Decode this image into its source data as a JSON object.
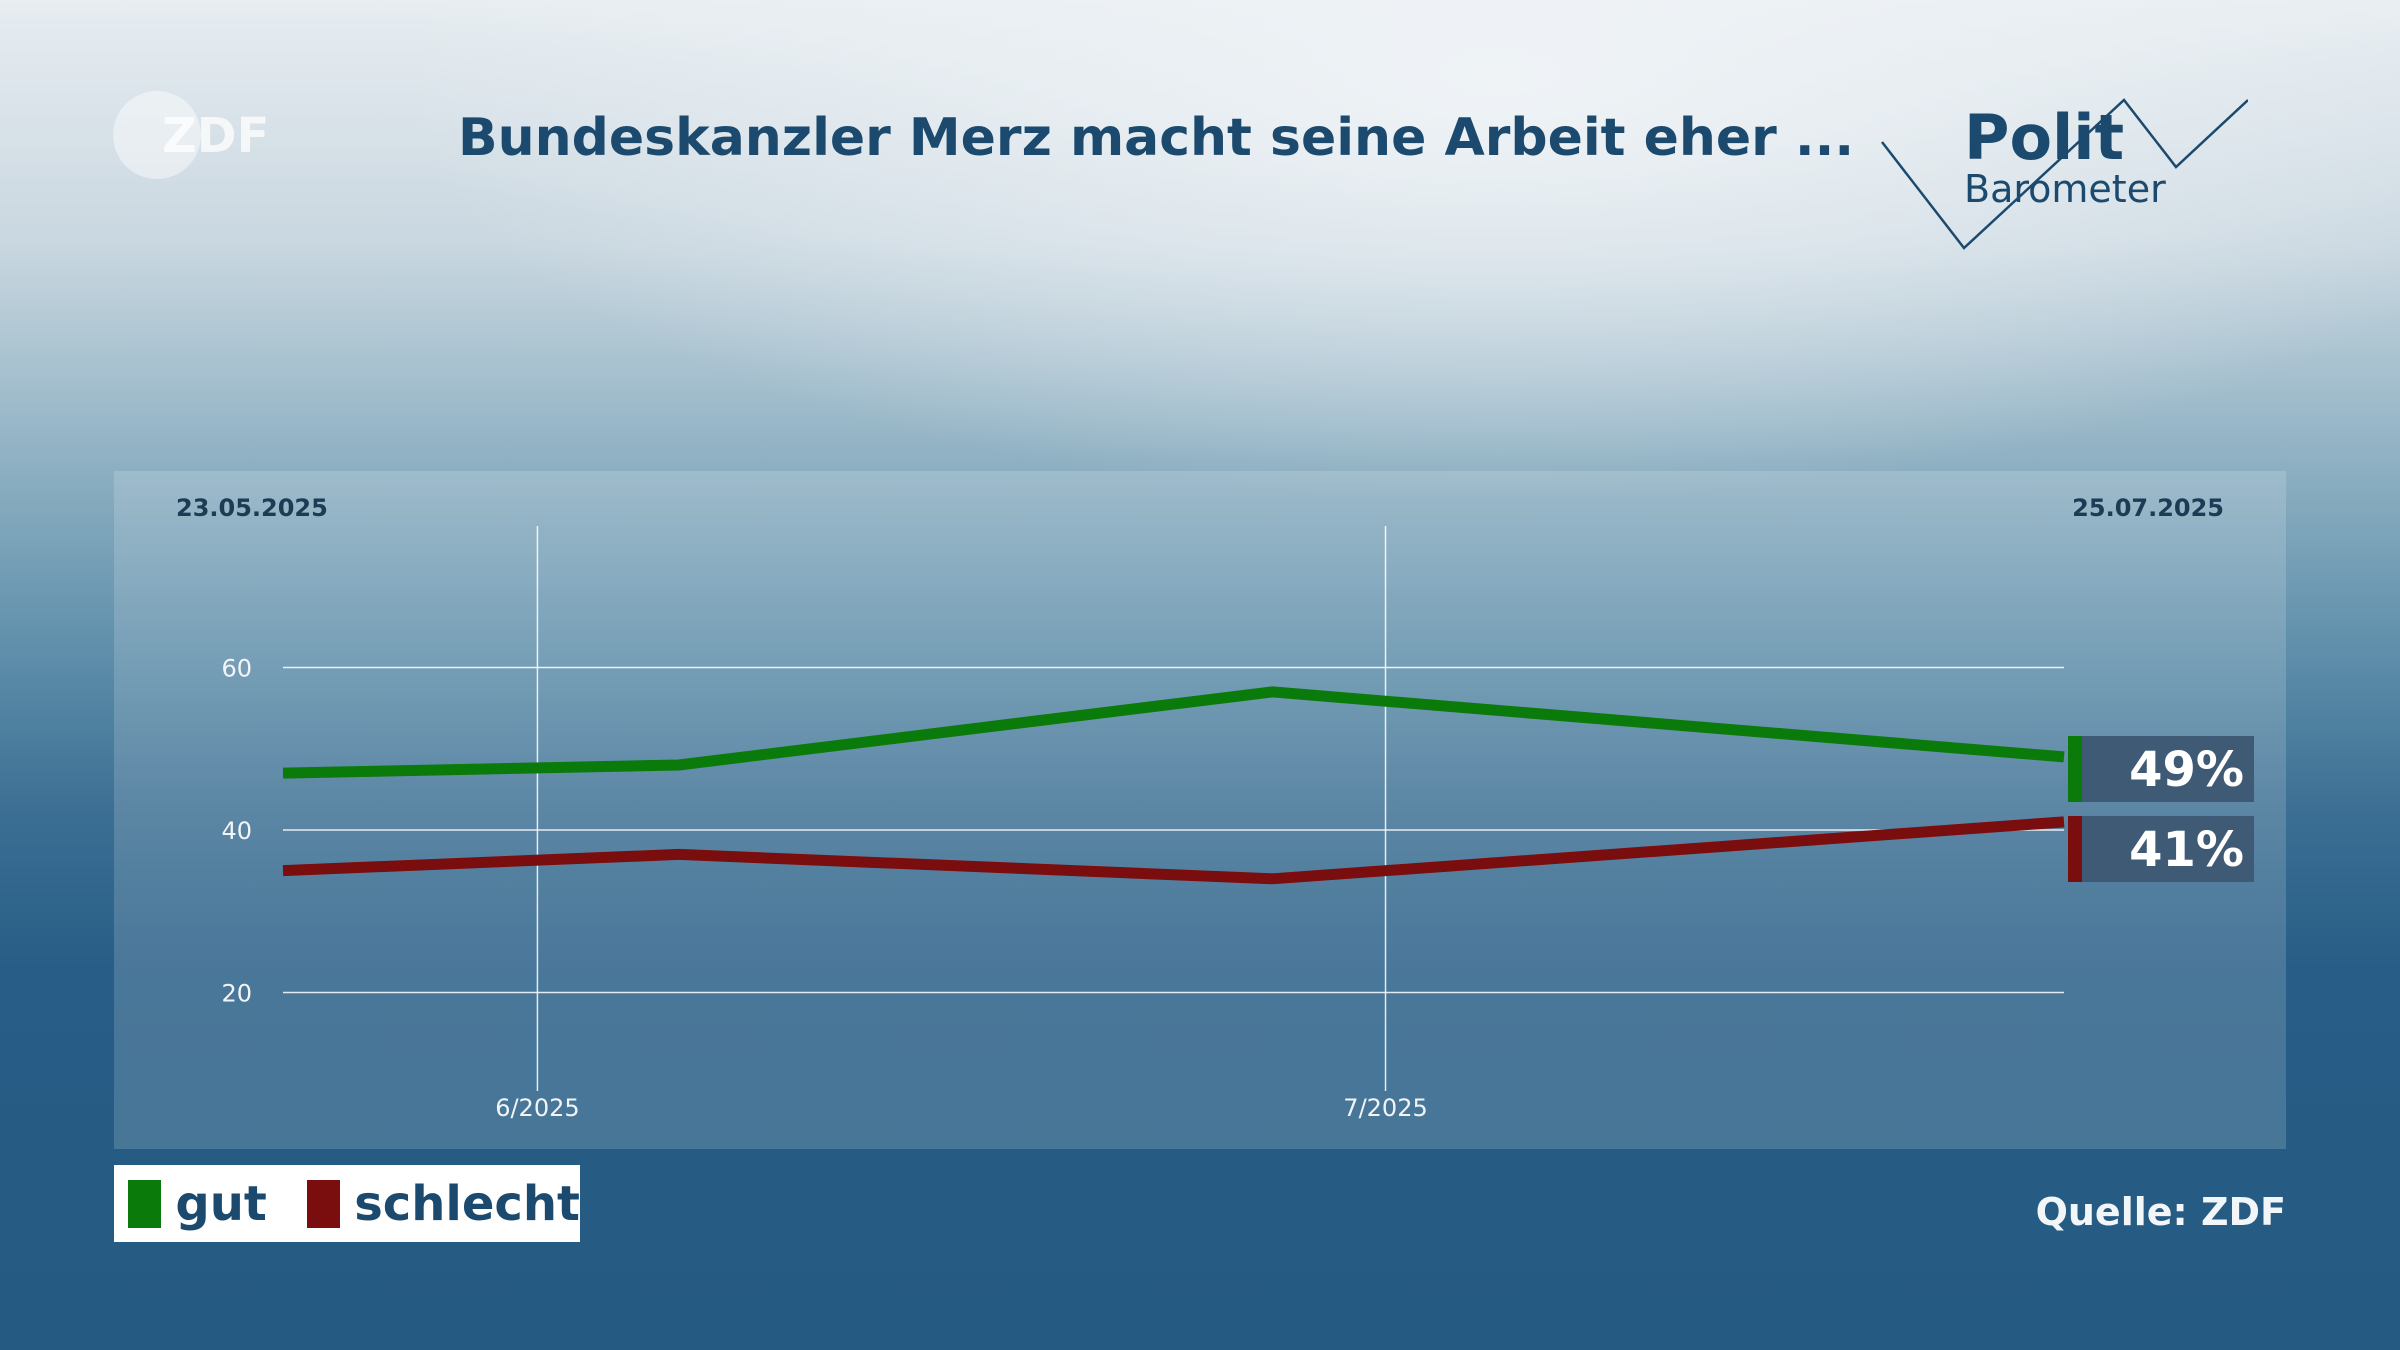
{
  "header": {
    "logo_text": "ZDF",
    "title": "Bundeskanzler Merz macht seine Arbeit eher ...",
    "brand_line1": "Polit",
    "brand_line2": "Barometer"
  },
  "chart_data": {
    "type": "line",
    "title": "Bundeskanzler Merz macht seine Arbeit eher ...",
    "start_date_label": "23.05.2025",
    "end_date_label": "25.07.2025",
    "x": [
      "2025-05-23",
      "2025-06-06",
      "2025-06-27",
      "2025-07-25"
    ],
    "x_ticks": [
      {
        "label": "6/2025",
        "date": "2025-06-01"
      },
      {
        "label": "7/2025",
        "date": "2025-07-01"
      }
    ],
    "xlim": [
      "2025-05-23",
      "2025-07-25"
    ],
    "ylim": [
      0,
      70
    ],
    "y_ticks": [
      20,
      40,
      60
    ],
    "grid": true,
    "series": [
      {
        "name": "gut",
        "color": "#0a7a0a",
        "values": [
          47,
          48,
          57,
          49
        ],
        "end_label": "49%"
      },
      {
        "name": "schlecht",
        "color": "#7a0d0d",
        "values": [
          35,
          37,
          34,
          41
        ],
        "end_label": "41%"
      }
    ],
    "legend_position": "bottom-left"
  },
  "footer": {
    "source": "Quelle: ZDF"
  }
}
